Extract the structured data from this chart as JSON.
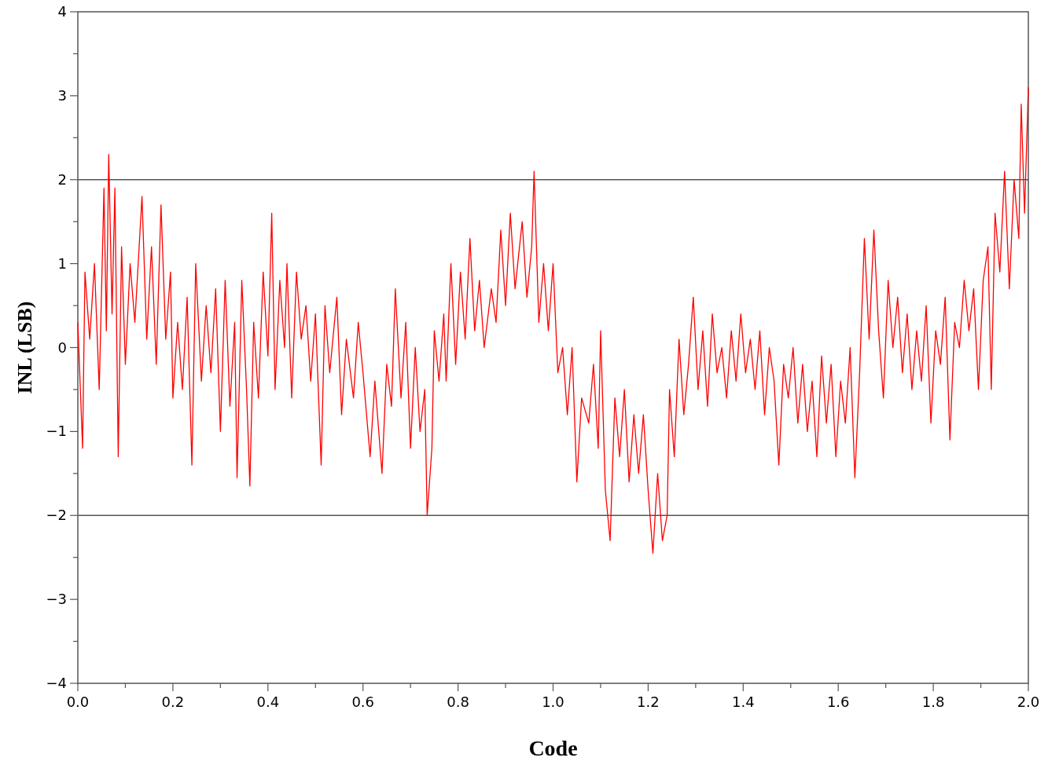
{
  "chart_data": {
    "type": "line",
    "xlabel": "Code",
    "ylabel": "INL (LSB)",
    "xlim": [
      0,
      2
    ],
    "ylim": [
      -4,
      4
    ],
    "xticks": [
      {
        "value": 0,
        "label": "0.0"
      },
      {
        "value": 0.1,
        "label": null
      },
      {
        "value": 0.2,
        "label": "0.2"
      },
      {
        "value": 0.3,
        "label": null
      },
      {
        "value": 0.4,
        "label": "0.4"
      },
      {
        "value": 0.5,
        "label": null
      },
      {
        "value": 0.6,
        "label": "0.6"
      },
      {
        "value": 0.7,
        "label": null
      },
      {
        "value": 0.8,
        "label": "0.8"
      },
      {
        "value": 0.9,
        "label": null
      },
      {
        "value": 1,
        "label": "1.0"
      },
      {
        "value": 1.1,
        "label": null
      },
      {
        "value": 1.2,
        "label": "1.2"
      },
      {
        "value": 1.3,
        "label": null
      },
      {
        "value": 1.4,
        "label": "1.4"
      },
      {
        "value": 1.5,
        "label": null
      },
      {
        "value": 1.6,
        "label": "1.6"
      },
      {
        "value": 1.7,
        "label": null
      },
      {
        "value": 1.8,
        "label": "1.8"
      },
      {
        "value": 1.9,
        "label": null
      },
      {
        "value": 2,
        "label": "2.0"
      }
    ],
    "yticks": [
      {
        "value": -4,
        "label": "−4"
      },
      {
        "value": -3.5,
        "label": null
      },
      {
        "value": -3,
        "label": "−3"
      },
      {
        "value": -2.5,
        "label": null
      },
      {
        "value": -2,
        "label": "−2"
      },
      {
        "value": -1.5,
        "label": null
      },
      {
        "value": -1,
        "label": "−1"
      },
      {
        "value": -0.5,
        "label": null
      },
      0,
      {
        "value": 0.5,
        "label": null
      },
      1,
      {
        "value": 1.5,
        "label": null
      },
      2,
      {
        "value": 2.5,
        "label": null
      },
      3,
      {
        "value": 3.5,
        "label": null
      },
      4
    ],
    "grid": false,
    "marker": "none",
    "line_style": "solid",
    "ref_lines": [
      {
        "axis": "y",
        "value": 2,
        "color": "#555555"
      },
      {
        "axis": "y",
        "value": -2,
        "color": "#555555"
      }
    ],
    "series": [
      {
        "color": "#ff0000",
        "x": [
          0,
          0.01,
          0.015,
          0.025,
          0.035,
          0.045,
          0.055,
          0.06,
          0.065,
          0.072,
          0.078,
          0.085,
          0.092,
          0.1,
          0.11,
          0.12,
          0.135,
          0.145,
          0.155,
          0.165,
          0.175,
          0.185,
          0.195,
          0.2,
          0.21,
          0.22,
          0.23,
          0.24,
          0.248,
          0.26,
          0.27,
          0.28,
          0.29,
          0.3,
          0.31,
          0.32,
          0.33,
          0.335,
          0.345,
          0.355,
          0.362,
          0.37,
          0.38,
          0.39,
          0.4,
          0.408,
          0.415,
          0.425,
          0.435,
          0.44,
          0.45,
          0.46,
          0.47,
          0.48,
          0.49,
          0.5,
          0.512,
          0.52,
          0.53,
          0.545,
          0.555,
          0.565,
          0.58,
          0.59,
          0.6,
          0.615,
          0.625,
          0.64,
          0.65,
          0.66,
          0.668,
          0.68,
          0.69,
          0.7,
          0.71,
          0.72,
          0.73,
          0.735,
          0.745,
          0.75,
          0.76,
          0.77,
          0.775,
          0.785,
          0.795,
          0.805,
          0.815,
          0.825,
          0.835,
          0.845,
          0.855,
          0.87,
          0.88,
          0.89,
          0.9,
          0.91,
          0.92,
          0.935,
          0.945,
          0.955,
          0.96,
          0.97,
          0.98,
          0.99,
          1,
          1.01,
          1.02,
          1.03,
          1.04,
          1.05,
          1.06,
          1.075,
          1.085,
          1.095,
          1.1,
          1.11,
          1.12,
          1.13,
          1.14,
          1.15,
          1.16,
          1.17,
          1.18,
          1.19,
          1.2,
          1.21,
          1.22,
          1.23,
          1.24,
          1.245,
          1.255,
          1.265,
          1.275,
          1.285,
          1.295,
          1.305,
          1.315,
          1.325,
          1.335,
          1.345,
          1.355,
          1.365,
          1.375,
          1.385,
          1.395,
          1.405,
          1.415,
          1.425,
          1.435,
          1.445,
          1.455,
          1.465,
          1.475,
          1.485,
          1.495,
          1.505,
          1.515,
          1.525,
          1.535,
          1.545,
          1.555,
          1.565,
          1.575,
          1.585,
          1.595,
          1.605,
          1.615,
          1.625,
          1.635,
          1.645,
          1.655,
          1.665,
          1.675,
          1.685,
          1.695,
          1.705,
          1.715,
          1.725,
          1.735,
          1.745,
          1.755,
          1.765,
          1.775,
          1.785,
          1.795,
          1.805,
          1.815,
          1.825,
          1.835,
          1.845,
          1.855,
          1.865,
          1.875,
          1.885,
          1.895,
          1.905,
          1.915,
          1.922,
          1.93,
          1.94,
          1.95,
          1.96,
          1.97,
          1.98,
          1.985,
          1.992,
          2
        ],
        "values": [
          0.3,
          -1.2,
          0.9,
          0.1,
          1,
          -0.5,
          1.9,
          0.2,
          2.3,
          0.4,
          1.9,
          -1.3,
          1.2,
          -0.2,
          1,
          0.3,
          1.8,
          0.1,
          1.2,
          -0.2,
          1.7,
          0.1,
          0.9,
          -0.6,
          0.3,
          -0.5,
          0.6,
          -1.4,
          1,
          -0.4,
          0.5,
          -0.3,
          0.7,
          -1,
          0.8,
          -0.7,
          0.3,
          -1.55,
          0.8,
          -0.5,
          -1.65,
          0.3,
          -0.6,
          0.9,
          -0.1,
          1.6,
          -0.5,
          0.8,
          0,
          1,
          -0.6,
          0.9,
          0.1,
          0.5,
          -0.4,
          0.4,
          -1.4,
          0.5,
          -0.3,
          0.6,
          -0.8,
          0.1,
          -0.6,
          0.3,
          -0.3,
          -1.3,
          -0.4,
          -1.5,
          -0.2,
          -0.7,
          0.7,
          -0.6,
          0.3,
          -1.2,
          0,
          -1,
          -0.5,
          -2,
          -1.2,
          0.2,
          -0.4,
          0.4,
          -0.4,
          1,
          -0.2,
          0.9,
          0.1,
          1.3,
          0.2,
          0.8,
          0,
          0.7,
          0.3,
          1.4,
          0.5,
          1.6,
          0.7,
          1.5,
          0.6,
          1.2,
          2.1,
          0.3,
          1,
          0.2,
          1,
          -0.3,
          0,
          -0.8,
          0,
          -1.6,
          -0.6,
          -0.9,
          -0.2,
          -1.2,
          0.2,
          -1.7,
          -2.3,
          -0.6,
          -1.3,
          -0.5,
          -1.6,
          -0.8,
          -1.5,
          -0.8,
          -1.7,
          -2.45,
          -1.5,
          -2.3,
          -2,
          -0.5,
          -1.3,
          0.1,
          -0.8,
          -0.2,
          0.6,
          -0.5,
          0.2,
          -0.7,
          0.4,
          -0.3,
          0,
          -0.6,
          0.2,
          -0.4,
          0.4,
          -0.3,
          0.1,
          -0.5,
          0.2,
          -0.8,
          0,
          -0.4,
          -1.4,
          -0.2,
          -0.6,
          0,
          -0.9,
          -0.2,
          -1,
          -0.4,
          -1.3,
          -0.1,
          -0.9,
          -0.2,
          -1.3,
          -0.4,
          -0.9,
          0,
          -1.55,
          -0.3,
          1.3,
          0.1,
          1.4,
          0.2,
          -0.6,
          0.8,
          0,
          0.6,
          -0.3,
          0.4,
          -0.5,
          0.2,
          -0.4,
          0.5,
          -0.9,
          0.2,
          -0.2,
          0.6,
          -1.1,
          0.3,
          0,
          0.8,
          0.2,
          0.7,
          -0.5,
          0.8,
          1.2,
          -0.5,
          1.6,
          0.9,
          2.1,
          0.7,
          2,
          1.3,
          2.9,
          1.6,
          3.1
        ]
      }
    ]
  }
}
